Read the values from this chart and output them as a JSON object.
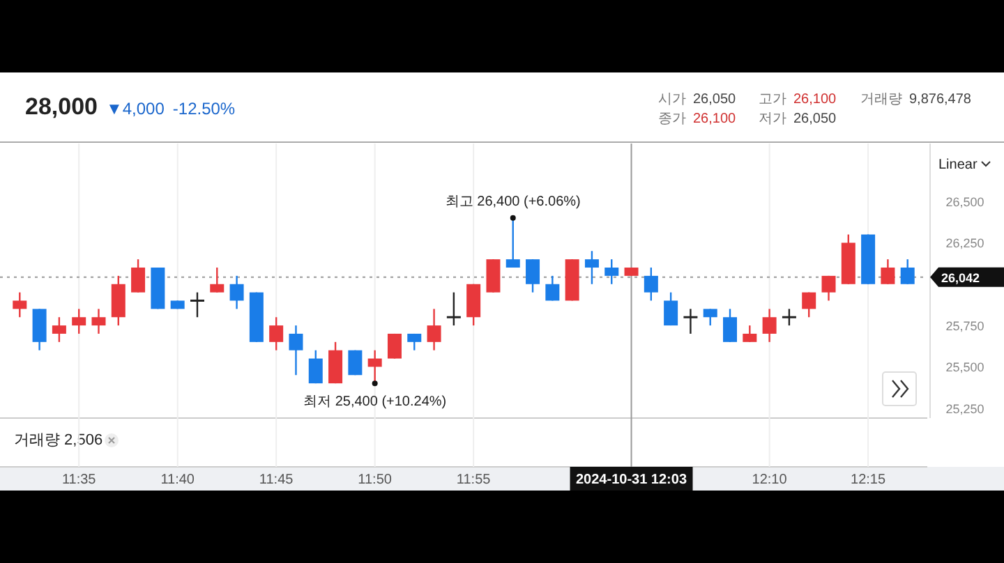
{
  "chart_data": {
    "type": "candlestick",
    "subtitle": "28,000 ▼4,000 -12.50%",
    "x": [
      "2024-10-31T11:32",
      "2024-10-31T11:33",
      "2024-10-31T11:34",
      "2024-10-31T11:35",
      "2024-10-31T11:36",
      "2024-10-31T11:37",
      "2024-10-31T11:38",
      "2024-10-31T11:39",
      "2024-10-31T11:40",
      "2024-10-31T11:41",
      "2024-10-31T11:42",
      "2024-10-31T11:43",
      "2024-10-31T11:44",
      "2024-10-31T11:45",
      "2024-10-31T11:46",
      "2024-10-31T11:47",
      "2024-10-31T11:48",
      "2024-10-31T11:49",
      "2024-10-31T11:50",
      "2024-10-31T11:51",
      "2024-10-31T11:52",
      "2024-10-31T11:53",
      "2024-10-31T11:54",
      "2024-10-31T11:55",
      "2024-10-31T11:56",
      "2024-10-31T11:57",
      "2024-10-31T11:58",
      "2024-10-31T11:59",
      "2024-10-31T12:00",
      "2024-10-31T12:01",
      "2024-10-31T12:02",
      "2024-10-31T12:03",
      "2024-10-31T12:04",
      "2024-10-31T12:05",
      "2024-10-31T12:06",
      "2024-10-31T12:07",
      "2024-10-31T12:08",
      "2024-10-31T12:09",
      "2024-10-31T12:10",
      "2024-10-31T12:11",
      "2024-10-31T12:12",
      "2024-10-31T12:13",
      "2024-10-31T12:14",
      "2024-10-31T12:15",
      "2024-10-31T12:16",
      "2024-10-31T12:17"
    ],
    "ohlc": [
      [
        25850,
        25950,
        25800,
        25900
      ],
      [
        25850,
        25850,
        25600,
        25650
      ],
      [
        25700,
        25800,
        25650,
        25750
      ],
      [
        25750,
        25850,
        25700,
        25800
      ],
      [
        25750,
        25850,
        25700,
        25800
      ],
      [
        25800,
        26050,
        25750,
        26000
      ],
      [
        25950,
        26150,
        25950,
        26100
      ],
      [
        26100,
        26100,
        25850,
        25850
      ],
      [
        25900,
        25900,
        25850,
        25850
      ],
      [
        25900,
        25950,
        25800,
        25900
      ],
      [
        25950,
        26100,
        25950,
        26000
      ],
      [
        26000,
        26050,
        25850,
        25900
      ],
      [
        25950,
        25950,
        25650,
        25650
      ],
      [
        25650,
        25800,
        25600,
        25750
      ],
      [
        25700,
        25750,
        25450,
        25600
      ],
      [
        25550,
        25600,
        25400,
        25400
      ],
      [
        25400,
        25650,
        25400,
        25600
      ],
      [
        25600,
        25600,
        25450,
        25450
      ],
      [
        25500,
        25600,
        25400,
        25550
      ],
      [
        25550,
        25700,
        25550,
        25700
      ],
      [
        25700,
        25700,
        25600,
        25650
      ],
      [
        25650,
        25850,
        25600,
        25750
      ],
      [
        25800,
        25950,
        25750,
        25800
      ],
      [
        25800,
        26000,
        25750,
        26000
      ],
      [
        25950,
        26150,
        25950,
        26150
      ],
      [
        26150,
        26400,
        26100,
        26100
      ],
      [
        26150,
        26150,
        25950,
        26000
      ],
      [
        26000,
        26050,
        25900,
        25900
      ],
      [
        25900,
        26150,
        25900,
        26150
      ],
      [
        26150,
        26200,
        26000,
        26100
      ],
      [
        26100,
        26150,
        26000,
        26050
      ],
      [
        26050,
        26100,
        26050,
        26100
      ],
      [
        26050,
        26100,
        25900,
        25950
      ],
      [
        25900,
        25950,
        25750,
        25750
      ],
      [
        25800,
        25850,
        25700,
        25800
      ],
      [
        25850,
        25850,
        25750,
        25800
      ],
      [
        25800,
        25850,
        25650,
        25650
      ],
      [
        25650,
        25750,
        25650,
        25700
      ],
      [
        25700,
        25850,
        25650,
        25800
      ],
      [
        25800,
        25850,
        25750,
        25800
      ],
      [
        25850,
        25950,
        25800,
        25950
      ],
      [
        25950,
        26050,
        25900,
        26050
      ],
      [
        26000,
        26300,
        26000,
        26250
      ],
      [
        26300,
        26300,
        26000,
        26000
      ],
      [
        26000,
        26150,
        26000,
        26100
      ],
      [
        26100,
        26150,
        26000,
        26000
      ]
    ],
    "colors": [
      "#e8383c",
      "#1a7de8",
      "#e8383c",
      "#e8383c",
      "#e8383c",
      "#e8383c",
      "#e8383c",
      "#1a7de8",
      "#1a7de8",
      "#222222",
      "#e8383c",
      "#1a7de8",
      "#1a7de8",
      "#e8383c",
      "#1a7de8",
      "#1a7de8",
      "#e8383c",
      "#1a7de8",
      "#e8383c",
      "#e8383c",
      "#1a7de8",
      "#e8383c",
      "#222222",
      "#e8383c",
      "#e8383c",
      "#1a7de8",
      "#1a7de8",
      "#1a7de8",
      "#e8383c",
      "#1a7de8",
      "#1a7de8",
      "#e8383c",
      "#1a7de8",
      "#1a7de8",
      "#222222",
      "#1a7de8",
      "#1a7de8",
      "#e8383c",
      "#e8383c",
      "#222222",
      "#e8383c",
      "#e8383c",
      "#e8383c",
      "#1a7de8",
      "#e8383c",
      "#1a7de8"
    ],
    "xlim": [
      "2024-10-31T11:31",
      "2024-10-31T12:18"
    ],
    "xticks": [
      {
        "value": "2024-10-31T11:35",
        "label": "11:35"
      },
      {
        "value": "2024-10-31T11:40",
        "label": "11:40"
      },
      {
        "value": "2024-10-31T11:45",
        "label": "11:45"
      },
      {
        "value": "2024-10-31T11:50",
        "label": "11:50"
      },
      {
        "value": "2024-10-31T11:55",
        "label": "11:55"
      },
      {
        "value": "2024-10-31T12:10",
        "label": "12:10"
      },
      {
        "value": "2024-10-31T12:15",
        "label": "12:15"
      }
    ],
    "ylim": [
      25190,
      26850
    ],
    "yticks": [
      {
        "value": 25250,
        "label": "25,250"
      },
      {
        "value": 25500,
        "label": "25,500"
      },
      {
        "value": 25750,
        "label": "25,750"
      },
      {
        "value": 26250,
        "label": "26,250"
      },
      {
        "value": 26500,
        "label": "26,500"
      }
    ],
    "grid": "x",
    "ref_lines": [
      {
        "axis": "y",
        "value": 26042,
        "label": "26,042",
        "color": "#999999",
        "line_style": "dotted"
      },
      {
        "axis": "x",
        "value": "2024-10-31T12:03",
        "label": "2024-10-31 12:03",
        "color": "#999999",
        "line_style": "solid"
      }
    ],
    "annotations": [
      "시가 26,050",
      "고가 26,100",
      "거래량 9,876,478",
      "종가 26,100",
      "저가 26,050",
      "Linear",
      "거래량 2,506",
      {
        "text": "최고 26,400 (+6.06%)",
        "x": "2024-10-31T11:57",
        "y": 26400
      },
      {
        "text": "최저 25,400 (+10.24%)",
        "x": "2024-10-31T11:50",
        "y": 25400
      }
    ]
  }
}
